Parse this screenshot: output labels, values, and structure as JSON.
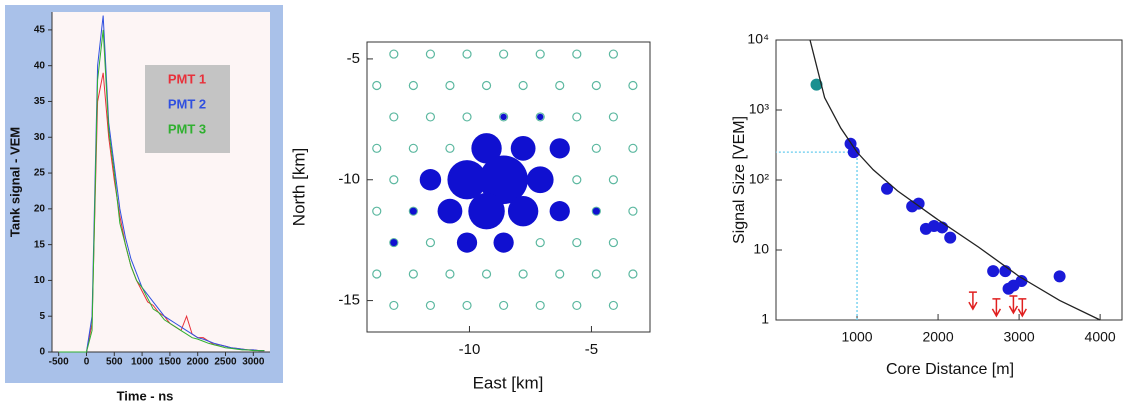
{
  "chart_data": [
    {
      "type": "line",
      "x_label": "Time - ns",
      "y_label": "Tank signal - VEM",
      "x": [
        -500,
        -400,
        -300,
        -200,
        -100,
        0,
        100,
        200,
        300,
        400,
        500,
        600,
        700,
        800,
        900,
        1000,
        1100,
        1200,
        1300,
        1400,
        1500,
        1600,
        1700,
        1800,
        1900,
        2000,
        2100,
        2200,
        2300,
        2400,
        2500,
        2600,
        2700,
        2800,
        2900,
        3000,
        3100,
        3200
      ],
      "series": [
        {
          "name": "PMT 1",
          "color": "#e8303a",
          "values": [
            0,
            0,
            0,
            0,
            0,
            0,
            4,
            35,
            39,
            30,
            24,
            19,
            15,
            12,
            10,
            8.5,
            7,
            6.5,
            5.5,
            5,
            4,
            3.5,
            3,
            5,
            2.5,
            2,
            2,
            1.5,
            1,
            1,
            0.8,
            0.6,
            0.5,
            0.4,
            0.3,
            0.3,
            0.2,
            0.2
          ]
        },
        {
          "name": "PMT 2",
          "color": "#3050e0",
          "values": [
            0,
            0,
            0,
            0,
            0,
            0,
            5,
            40,
            47,
            32,
            26,
            20,
            16,
            13,
            11,
            9,
            8,
            7,
            6,
            5,
            4.5,
            4,
            3.5,
            3,
            2.5,
            2,
            1.8,
            1.5,
            1.2,
            1,
            0.8,
            0.6,
            0.5,
            0.4,
            0.3,
            0.3,
            0.2,
            0.2
          ]
        },
        {
          "name": "PMT 3",
          "color": "#30b030",
          "values": [
            0,
            0,
            0,
            0,
            0,
            0,
            3,
            38,
            45,
            31,
            25,
            18,
            15,
            12,
            10,
            9,
            7.5,
            6,
            5.5,
            4.5,
            4,
            3.5,
            3,
            2.5,
            2,
            1.8,
            1.5,
            1.2,
            1,
            0.8,
            0.6,
            0.5,
            0.4,
            0.3,
            0.3,
            0.2,
            0.2,
            0.2
          ]
        }
      ],
      "xlim": [
        -620,
        3300
      ],
      "xticks": [
        -500,
        0,
        500,
        1000,
        1500,
        2000,
        2500,
        3000
      ],
      "ylim": [
        0,
        47.5
      ],
      "yticks": [
        0,
        5,
        10,
        15,
        20,
        25,
        30,
        35,
        40,
        45
      ],
      "legend": "upper right"
    },
    {
      "type": "bubble",
      "x_label": "East [km]",
      "y_label": "North [km]",
      "xlim": [
        -14.2,
        -2.6
      ],
      "xticks": [
        -10,
        -5
      ],
      "ylim": [
        -16.3,
        -4.3
      ],
      "yticks": [
        -5,
        -10,
        -15
      ],
      "series": [
        {
          "color": "#5cb8a0",
          "marker": "open",
          "x": [
            -13.1,
            -11.6,
            -10.1,
            -8.6,
            -7.1,
            -5.6,
            -4.1,
            -13.8,
            -12.3,
            -10.8,
            -9.3,
            -7.8,
            -6.3,
            -4.8,
            -3.3,
            -13.1,
            -11.6,
            -10.1,
            -8.6,
            -7.1,
            -5.6,
            -4.1,
            -13.8,
            -12.3,
            -10.8,
            -9.3,
            -7.8,
            -6.3,
            -4.8,
            -3.3,
            -13.1,
            -11.6,
            -10.1,
            -8.6,
            -7.1,
            -5.6,
            -4.1,
            -13.8,
            -12.3,
            -10.8,
            -9.3,
            -7.8,
            -6.3,
            -4.8,
            -3.3,
            -13.1,
            -11.6,
            -10.1,
            -8.6,
            -7.1,
            -5.6,
            -4.1,
            -13.8,
            -12.3,
            -10.8,
            -9.3,
            -7.8,
            -6.3,
            -4.8,
            -3.3,
            -13.1,
            -11.6,
            -10.1,
            -8.6,
            -7.1,
            -5.6,
            -4.1
          ],
          "values": [
            -15.2,
            -15.2,
            -15.2,
            -15.2,
            -15.2,
            -15.2,
            -15.2,
            -13.9,
            -13.9,
            -13.9,
            -13.9,
            -13.9,
            -13.9,
            -13.9,
            -13.9,
            -12.6,
            -12.6,
            -12.6,
            -12.6,
            -12.6,
            -12.6,
            -12.6,
            -11.3,
            -11.3,
            -11.3,
            -11.3,
            -11.3,
            -11.3,
            -11.3,
            -11.3,
            -10,
            -10,
            -10,
            -10,
            -10,
            -10,
            -10,
            -8.7,
            -8.7,
            -8.7,
            -8.7,
            -8.7,
            -8.7,
            -8.7,
            -8.7,
            -7.4,
            -7.4,
            -7.4,
            -7.4,
            -7.4,
            -7.4,
            -7.4,
            -6.1,
            -6.1,
            -6.1,
            -6.1,
            -6.1,
            -6.1,
            -6.1,
            -6.1,
            -4.8,
            -4.8,
            -4.8,
            -4.8,
            -4.8,
            -4.8,
            -4.8
          ]
        },
        {
          "color": "#1010d0",
          "marker": "filled",
          "x": [
            -8.6,
            -10.1,
            -7.1,
            -11.6,
            -9.3,
            -7.8,
            -6.3,
            -9.3,
            -7.8,
            -10.8,
            -6.3,
            -12.3,
            -4.8,
            -8.6,
            -10.1,
            -13.1,
            -8.6,
            -7.1
          ],
          "values": [
            -10,
            -10,
            -10,
            -10,
            -8.7,
            -8.7,
            -8.7,
            -11.3,
            -11.3,
            -11.3,
            -11.3,
            -11.3,
            -11.3,
            -12.6,
            -12.6,
            -12.6,
            -7.4,
            -7.4
          ],
          "sizes": [
            230,
            150,
            70,
            45,
            90,
            60,
            40,
            130,
            90,
            60,
            40,
            5,
            5,
            40,
            40,
            5,
            4,
            4
          ]
        }
      ]
    },
    {
      "type": "scatter",
      "x_label": "Core Distance [m]",
      "y_label": "Signal Size [VEM]",
      "log_y": true,
      "xlim": [
        0,
        4270
      ],
      "xticks": [
        1000,
        2000,
        3000,
        4000
      ],
      "ylim": [
        1,
        10000
      ],
      "yticks": [
        1,
        10,
        {
          "value": 100,
          "label": "10²"
        },
        {
          "value": 1000,
          "label": "10³"
        },
        {
          "value": 10000,
          "label": "10⁴"
        }
      ],
      "series": [
        {
          "color": "#1a9090",
          "marker": "dot",
          "x": [
            500
          ],
          "values": [
            2300
          ]
        },
        {
          "color": "#1a1ad8",
          "marker": "dot",
          "x": [
            920,
            960,
            1370,
            1680,
            1760,
            1850,
            1950,
            2050,
            2150,
            2680,
            2830,
            2870,
            2930,
            3030,
            3500
          ],
          "values": [
            330,
            250,
            75,
            42,
            46,
            20,
            22,
            21,
            15,
            5,
            5,
            2.8,
            3.1,
            3.6,
            4.2
          ]
        },
        {
          "color": "#e02020",
          "marker": "arrow",
          "x": [
            2430,
            2720,
            2930,
            3040
          ],
          "values": [
            2.5,
            2,
            2.2,
            2
          ]
        },
        {
          "color": "#222222",
          "marker": "line",
          "x": [
            420,
            600,
            800,
            1000,
            1200,
            1500,
            2000,
            2500,
            3000,
            3500,
            4000
          ],
          "values": [
            10000,
            1500,
            550,
            250,
            140,
            70,
            27,
            11,
            4.2,
            1.9,
            1
          ]
        }
      ],
      "reference": {
        "x": 1000,
        "y": 250,
        "color": "#66ccee"
      }
    }
  ]
}
